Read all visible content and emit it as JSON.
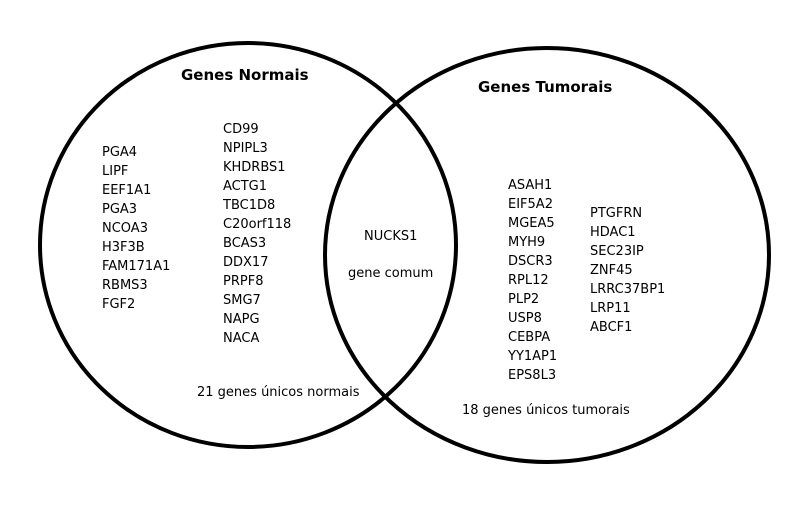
{
  "left_set": {
    "title": "Genes Normais",
    "genes_col1": [
      "PGA4",
      "LIPF",
      "EEF1A1",
      "PGA3",
      "NCOA3",
      "H3F3B",
      "FAM171A1",
      "RBMS3",
      "FGF2"
    ],
    "genes_col2": [
      "CD99",
      "NPIPL3",
      "KHDRBS1",
      "ACTG1",
      "TBC1D8",
      "C20orf118",
      "BCAS3",
      "DDX17",
      "PRPF8",
      "SMG7",
      "NAPG",
      "NACA"
    ],
    "count_label": "21 genes  únicos normais"
  },
  "right_set": {
    "title": "Genes Tumorais",
    "genes_col1": [
      "ASAH1",
      "EIF5A2",
      "MGEA5",
      "MYH9",
      "DSCR3",
      "RPL12",
      "PLP2",
      "USP8",
      "CEBPA",
      "YY1AP1",
      "EPS8L3"
    ],
    "genes_col2": [
      "PTGFRN",
      "HDAC1",
      "SEC23IP",
      "ZNF45",
      "LRRC37BP1",
      "LRP11",
      "ABCF1"
    ],
    "count_label": "18 genes únicos tumorais"
  },
  "intersection": {
    "gene": "NUCKS1",
    "label": "gene comum"
  },
  "style": {
    "stroke": "#000000",
    "background": "#ffffff"
  }
}
